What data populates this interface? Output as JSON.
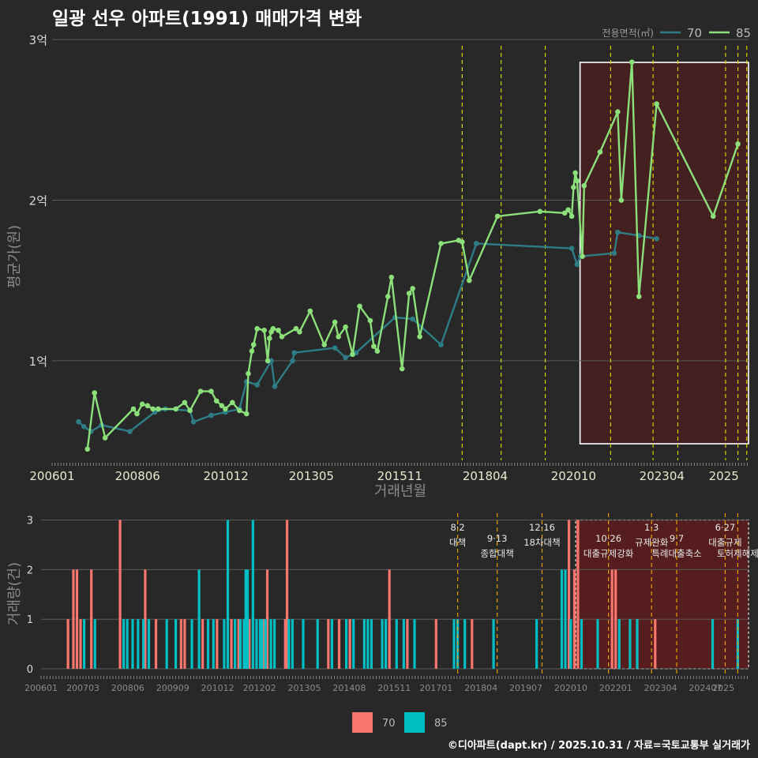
{
  "title": "일광 선우 아파트(1991) 매매가격 변화",
  "footer": "©디아파트(dapt.kr) / 2025.10.31 / 자료=국토교통부 실거래가",
  "colors": {
    "background": "#282828",
    "series_70_line": "#2e7d86",
    "series_70_bar": "#f8766d",
    "series_85_line": "#8ce07a",
    "series_85_bar": "#00bfc4",
    "policy_line": "#d4d400",
    "policy_line_bottom": "#e8a000",
    "highlight_fill": "#4a1f1f"
  },
  "chart_data": [
    {
      "type": "line",
      "title": "일광 선우 아파트(1991) 매매가격 변화",
      "xlabel": "거래년월",
      "ylabel": "평균가(원)",
      "x_ticks": [
        "200601",
        "200806",
        "201012",
        "201305",
        "201511",
        "201804",
        "202010",
        "202304",
        "2025"
      ],
      "y_ticks": [
        {
          "value": 1,
          "label": "1억"
        },
        {
          "value": 2,
          "label": "2억"
        },
        {
          "value": 3,
          "label": "3억"
        }
      ],
      "ylim": [
        0.38,
        3.05
      ],
      "xlim": [
        2006.0,
        2025.7
      ],
      "legend": {
        "title": "전용면적(㎡)",
        "position": "top-right"
      },
      "policy_dates": [
        2017.6,
        2018.7,
        2019.95,
        2021.8,
        2023.0,
        2023.7,
        2025.05,
        2025.4,
        2025.65
      ],
      "highlight_range": [
        2020.8,
        2025.7
      ],
      "series": [
        {
          "name": "70",
          "points": [
            [
              2006.75,
              0.62
            ],
            [
              2006.9,
              0.59
            ],
            [
              2007.1,
              0.56
            ],
            [
              2007.4,
              0.6
            ],
            [
              2008.2,
              0.56
            ],
            [
              2008.9,
              0.68
            ],
            [
              2009.2,
              0.7
            ],
            [
              2009.9,
              0.69
            ],
            [
              2010.0,
              0.62
            ],
            [
              2010.5,
              0.66
            ],
            [
              2010.9,
              0.68
            ],
            [
              2011.3,
              0.7
            ],
            [
              2011.5,
              0.87
            ],
            [
              2011.8,
              0.85
            ],
            [
              2012.2,
              1.0
            ],
            [
              2012.3,
              0.84
            ],
            [
              2012.8,
              1.0
            ],
            [
              2012.85,
              1.05
            ],
            [
              2014.0,
              1.08
            ],
            [
              2014.3,
              1.02
            ],
            [
              2014.6,
              1.05
            ],
            [
              2015.7,
              1.27
            ],
            [
              2016.2,
              1.26
            ],
            [
              2017.0,
              1.1
            ],
            [
              2018.0,
              1.73
            ],
            [
              2020.7,
              1.7
            ],
            [
              2020.85,
              1.6
            ],
            [
              2020.95,
              1.65
            ],
            [
              2021.9,
              1.67
            ],
            [
              2022.0,
              1.8
            ],
            [
              2022.6,
              1.78
            ],
            [
              2023.1,
              1.76
            ]
          ]
        },
        {
          "name": "85",
          "points": [
            [
              2007.0,
              0.45
            ],
            [
              2007.2,
              0.8
            ],
            [
              2007.5,
              0.52
            ],
            [
              2008.3,
              0.7
            ],
            [
              2008.4,
              0.67
            ],
            [
              2008.55,
              0.73
            ],
            [
              2008.7,
              0.72
            ],
            [
              2008.85,
              0.7
            ],
            [
              2009.0,
              0.7
            ],
            [
              2009.5,
              0.7
            ],
            [
              2009.75,
              0.74
            ],
            [
              2009.9,
              0.69
            ],
            [
              2010.2,
              0.81
            ],
            [
              2010.5,
              0.81
            ],
            [
              2010.65,
              0.75
            ],
            [
              2010.8,
              0.72
            ],
            [
              2010.9,
              0.7
            ],
            [
              2011.1,
              0.74
            ],
            [
              2011.3,
              0.69
            ],
            [
              2011.5,
              0.67
            ],
            [
              2011.55,
              0.92
            ],
            [
              2011.65,
              1.06
            ],
            [
              2011.7,
              1.1
            ],
            [
              2011.8,
              1.2
            ],
            [
              2012.0,
              1.19
            ],
            [
              2012.1,
              1.0
            ],
            [
              2012.15,
              1.14
            ],
            [
              2012.2,
              1.18
            ],
            [
              2012.25,
              1.2
            ],
            [
              2012.4,
              1.19
            ],
            [
              2012.5,
              1.15
            ],
            [
              2012.9,
              1.2
            ],
            [
              2013.0,
              1.18
            ],
            [
              2013.3,
              1.31
            ],
            [
              2013.7,
              1.1
            ],
            [
              2014.0,
              1.24
            ],
            [
              2014.1,
              1.15
            ],
            [
              2014.3,
              1.21
            ],
            [
              2014.5,
              1.04
            ],
            [
              2014.7,
              1.34
            ],
            [
              2015.0,
              1.25
            ],
            [
              2015.1,
              1.09
            ],
            [
              2015.2,
              1.06
            ],
            [
              2015.5,
              1.4
            ],
            [
              2015.6,
              1.52
            ],
            [
              2015.9,
              0.95
            ],
            [
              2016.1,
              1.42
            ],
            [
              2016.2,
              1.45
            ],
            [
              2016.4,
              1.15
            ],
            [
              2017.0,
              1.73
            ],
            [
              2017.5,
              1.75
            ],
            [
              2017.6,
              1.74
            ],
            [
              2017.8,
              1.5
            ],
            [
              2018.6,
              1.9
            ],
            [
              2019.8,
              1.93
            ],
            [
              2020.5,
              1.92
            ],
            [
              2020.6,
              1.94
            ],
            [
              2020.7,
              1.9
            ],
            [
              2020.75,
              2.08
            ],
            [
              2020.8,
              2.17
            ],
            [
              2020.85,
              2.12
            ],
            [
              2021.0,
              1.65
            ],
            [
              2021.05,
              2.09
            ],
            [
              2021.5,
              2.3
            ],
            [
              2022.0,
              2.55
            ],
            [
              2022.1,
              2.0
            ],
            [
              2022.4,
              2.86
            ],
            [
              2022.6,
              1.4
            ],
            [
              2023.1,
              2.6
            ],
            [
              2024.7,
              1.9
            ],
            [
              2025.4,
              2.35
            ]
          ]
        }
      ]
    },
    {
      "type": "bar",
      "title": "",
      "xlabel": "",
      "ylabel": "거래량(건)",
      "x_ticks": [
        "200601",
        "200703",
        "200806",
        "200909",
        "201012",
        "201202",
        "201305",
        "201408",
        "201511",
        "201701",
        "201804",
        "201907",
        "202010",
        "202201",
        "202304",
        "202407",
        "2025"
      ],
      "y_ticks": [
        {
          "value": 0,
          "label": "0"
        },
        {
          "value": 1,
          "label": "1"
        },
        {
          "value": 2,
          "label": "2"
        },
        {
          "value": 3,
          "label": "3"
        }
      ],
      "ylim": [
        0,
        3.2
      ],
      "xlim": [
        2006.0,
        2025.7
      ],
      "legend": {
        "position": "bottom",
        "entries": [
          "70",
          "85"
        ]
      },
      "highlight_range": [
        2020.8,
        2025.7
      ],
      "policies": [
        {
          "x": 2017.6,
          "date": "8·2",
          "name": "대책"
        },
        {
          "x": 2018.7,
          "date": "9·13",
          "name": "종합대책"
        },
        {
          "x": 2019.95,
          "date": "12·16",
          "name": "18차대책"
        },
        {
          "x": 2021.8,
          "date": "10·26",
          "name": "대출규제강화"
        },
        {
          "x": 2023.0,
          "date": "1·3",
          "name": "규제완화"
        },
        {
          "x": 2023.7,
          "date": "9·7",
          "name": "특례대출축소"
        },
        {
          "x": 2025.05,
          "date": "6·27",
          "name": "대출규제"
        },
        {
          "x": 2025.4,
          "date": "",
          "name": "토허제해제"
        }
      ],
      "series": [
        {
          "name": "70",
          "points": [
            [
              2006.75,
              1
            ],
            [
              2006.9,
              2
            ],
            [
              2007.0,
              2
            ],
            [
              2007.1,
              1
            ],
            [
              2007.4,
              2
            ],
            [
              2008.2,
              3
            ],
            [
              2008.9,
              2
            ],
            [
              2009.2,
              1
            ],
            [
              2009.9,
              1
            ],
            [
              2010.0,
              1
            ],
            [
              2010.5,
              1
            ],
            [
              2010.9,
              1
            ],
            [
              2011.3,
              1
            ],
            [
              2011.5,
              1
            ],
            [
              2011.8,
              1
            ],
            [
              2012.2,
              1
            ],
            [
              2012.3,
              2
            ],
            [
              2012.8,
              1
            ],
            [
              2012.85,
              3
            ],
            [
              2014.0,
              1
            ],
            [
              2014.3,
              1
            ],
            [
              2014.6,
              1
            ],
            [
              2015.7,
              2
            ],
            [
              2016.2,
              1
            ],
            [
              2017.0,
              1
            ],
            [
              2018.0,
              1
            ],
            [
              2020.7,
              3
            ],
            [
              2020.85,
              2
            ],
            [
              2020.95,
              3
            ],
            [
              2021.9,
              2
            ],
            [
              2022.0,
              2
            ],
            [
              2022.6,
              1
            ],
            [
              2023.1,
              1
            ]
          ]
        },
        {
          "name": "85",
          "points": [
            [
              2007.2,
              1
            ],
            [
              2007.5,
              1
            ],
            [
              2008.3,
              1
            ],
            [
              2008.4,
              1
            ],
            [
              2008.55,
              1
            ],
            [
              2008.7,
              1
            ],
            [
              2008.85,
              1
            ],
            [
              2009.0,
              1
            ],
            [
              2009.5,
              1
            ],
            [
              2009.75,
              1
            ],
            [
              2010.2,
              1
            ],
            [
              2010.4,
              2
            ],
            [
              2010.65,
              1
            ],
            [
              2010.8,
              1
            ],
            [
              2011.1,
              1
            ],
            [
              2011.2,
              3
            ],
            [
              2011.4,
              1
            ],
            [
              2011.55,
              1
            ],
            [
              2011.65,
              1
            ],
            [
              2011.7,
              2
            ],
            [
              2011.75,
              2
            ],
            [
              2011.9,
              3
            ],
            [
              2012.0,
              1
            ],
            [
              2012.1,
              1
            ],
            [
              2012.15,
              1
            ],
            [
              2012.25,
              1
            ],
            [
              2012.4,
              1
            ],
            [
              2012.5,
              1
            ],
            [
              2012.9,
              1
            ],
            [
              2013.0,
              1
            ],
            [
              2013.3,
              1
            ],
            [
              2013.7,
              1
            ],
            [
              2014.1,
              1
            ],
            [
              2014.5,
              1
            ],
            [
              2014.7,
              1
            ],
            [
              2015.0,
              1
            ],
            [
              2015.1,
              1
            ],
            [
              2015.2,
              1
            ],
            [
              2015.5,
              1
            ],
            [
              2015.6,
              1
            ],
            [
              2015.9,
              1
            ],
            [
              2016.1,
              1
            ],
            [
              2016.4,
              1
            ],
            [
              2017.5,
              1
            ],
            [
              2017.6,
              1
            ],
            [
              2017.8,
              1
            ],
            [
              2018.6,
              1
            ],
            [
              2019.8,
              1
            ],
            [
              2020.5,
              2
            ],
            [
              2020.6,
              2
            ],
            [
              2020.75,
              1
            ],
            [
              2021.05,
              1
            ],
            [
              2021.5,
              1
            ],
            [
              2022.1,
              1
            ],
            [
              2022.4,
              1
            ],
            [
              2022.6,
              1
            ],
            [
              2024.7,
              1
            ],
            [
              2025.4,
              1
            ]
          ]
        }
      ]
    }
  ]
}
